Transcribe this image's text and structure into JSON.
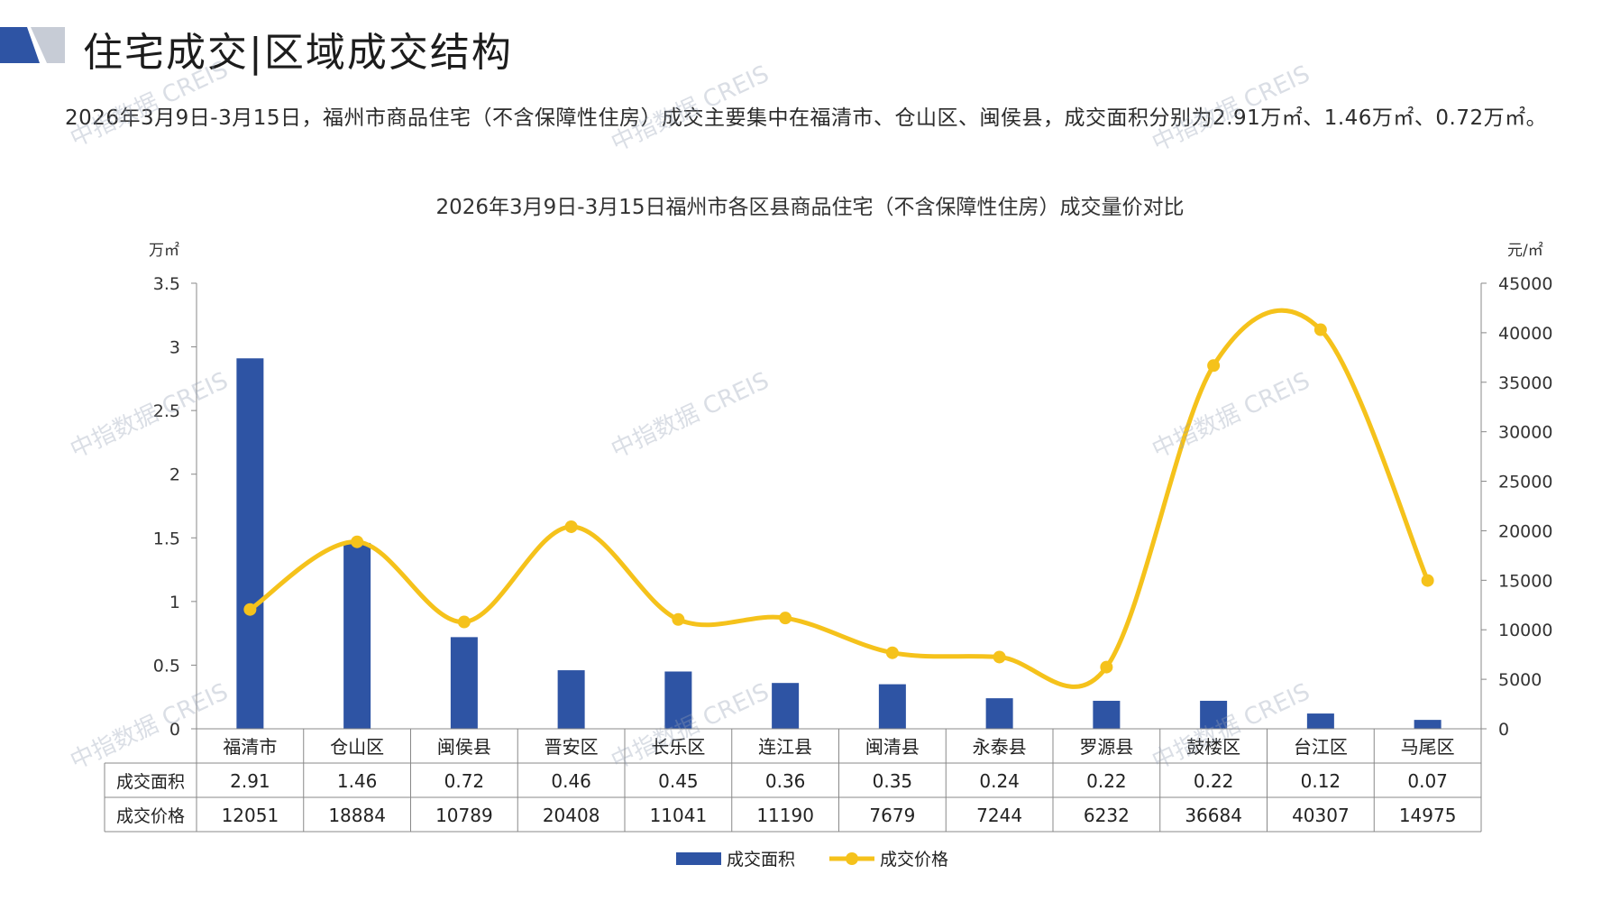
{
  "header": {
    "title": "住宅成交|区域成交结构"
  },
  "summary": "2026年3月9日-3月15日，福州市商品住宅（不含保障性住房）成交主要集中在福清市、仓山区、闽侯县，成交面积分别为2.91万㎡、1.46万㎡、0.72万㎡。",
  "watermark": "中指数据 CREIS",
  "colors": {
    "bar": "#2e54a4",
    "line": "#f5c21b",
    "logo_dark": "#2e54a4",
    "logo_light": "#c7ccd6"
  },
  "chart_data": {
    "type": "bar",
    "title": "2026年3月9日-3月15日福州市各区县商品住宅（不含保障性住房）成交量价对比",
    "ylabel_left": "万㎡",
    "ylabel_right": "元/㎡",
    "categories": [
      "福清市",
      "仓山区",
      "闽侯县",
      "晋安区",
      "长乐区",
      "连江县",
      "闽清县",
      "永泰县",
      "罗源县",
      "鼓楼区",
      "台江区",
      "马尾区"
    ],
    "series": [
      {
        "name": "成交面积",
        "type": "bar",
        "axis": "left",
        "values": [
          2.91,
          1.46,
          0.72,
          0.46,
          0.45,
          0.36,
          0.35,
          0.24,
          0.22,
          0.22,
          0.12,
          0.07
        ]
      },
      {
        "name": "成交价格",
        "type": "line",
        "axis": "right",
        "values": [
          12051,
          18884,
          10789,
          20408,
          11041,
          11190,
          7679,
          7244,
          6232,
          36684,
          40307,
          14975
        ]
      }
    ],
    "ylim_left": [
      0,
      3.5
    ],
    "yticks_left": [
      "0",
      "0.5",
      "1",
      "1.5",
      "2",
      "2.5",
      "3",
      "3.5"
    ],
    "ylim_right": [
      0,
      45000
    ],
    "yticks_right": [
      "0",
      "5000",
      "10000",
      "15000",
      "20000",
      "25000",
      "30000",
      "35000",
      "40000",
      "45000"
    ],
    "table_rows": [
      {
        "label": "成交面积",
        "values": [
          "2.91",
          "1.46",
          "0.72",
          "0.46",
          "0.45",
          "0.36",
          "0.35",
          "0.24",
          "0.22",
          "0.22",
          "0.12",
          "0.07"
        ]
      },
      {
        "label": "成交价格",
        "values": [
          "12051",
          "18884",
          "10789",
          "20408",
          "11041",
          "11190",
          "7679",
          "7244",
          "6232",
          "36684",
          "40307",
          "14975"
        ]
      }
    ],
    "legend_position": "bottom",
    "grid": false
  }
}
